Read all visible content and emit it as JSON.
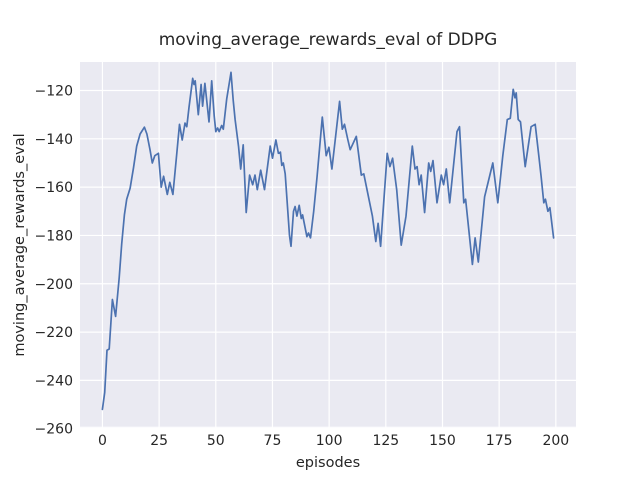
{
  "figure": {
    "background": "#ffffff"
  },
  "chart_data": {
    "type": "line",
    "title": "moving_average_rewards_eval of DDPG",
    "xlabel": "episodes",
    "ylabel": "moving_average_rewards_eval",
    "grid": true,
    "legend": "none",
    "plot_background": "#EAEAF2",
    "grid_color": "#FFFFFF",
    "text_color": "#262626",
    "xlim": [
      -9.9,
      208.9
    ],
    "ylim": [
      -259.7,
      -108.2
    ],
    "xticks": [
      0,
      25,
      50,
      75,
      100,
      125,
      150,
      175,
      200
    ],
    "yticks": [
      -120,
      -140,
      -160,
      -180,
      -200,
      -220,
      -240,
      -260
    ],
    "series": [
      {
        "name": "moving_average_rewards_eval",
        "color": "#4C72B0",
        "x": [
          0,
          1,
          2,
          3,
          4.4,
          5.8,
          7.4,
          8.5,
          9.7,
          10.7,
          12.2,
          13.7,
          15.1,
          16.6,
          18.5,
          19.6,
          21,
          22,
          23.1,
          24.7,
          25.9,
          27,
          28.6,
          29.7,
          31.1,
          32.8,
          34,
          35.2,
          36.4,
          37.2,
          38.2,
          39.8,
          40.4,
          40.9,
          42.3,
          43.5,
          44.2,
          45.2,
          47,
          48.2,
          49.3,
          50,
          50.8,
          51.5,
          52.6,
          53.3,
          54.8,
          56.7,
          57.7,
          58.5,
          60,
          61,
          62.1,
          63.4,
          64.9,
          66.3,
          67.3,
          68.3,
          69.8,
          71.5,
          74,
          75,
          76.5,
          77.6,
          78.5,
          79.1,
          79.8,
          80.6,
          82.5,
          83.2,
          84.3,
          85,
          85.8,
          86.8,
          87.7,
          88.3,
          90.2,
          90.9,
          91.8,
          93.2,
          94.7,
          97,
          98.7,
          99.9,
          101.2,
          104.6,
          105.8,
          106.8,
          108.3,
          109.3,
          112,
          114.2,
          115.3,
          119.1,
          120.6,
          121.6,
          122.7,
          125.6,
          126.8,
          128,
          129.8,
          131.8,
          133.9,
          136.7,
          137.9,
          138.8,
          139.7,
          140.6,
          142.1,
          143.9,
          144.8,
          145.8,
          147.6,
          149.5,
          150.5,
          151.7,
          153.2,
          156.4,
          157.5,
          159.4,
          160.2,
          163.2,
          164.4,
          165.8,
          168.6,
          172.2,
          174.4,
          176.6,
          178.6,
          179.9,
          181.2,
          182,
          182.5,
          183.4,
          184.4,
          186.5,
          189.1,
          190.9,
          192.5,
          193.5,
          194.7,
          195.4,
          196.5,
          197.4,
          199
        ],
        "y": [
          -252,
          -245,
          -227.5,
          -227,
          -206.5,
          -213.5,
          -197.5,
          -183.5,
          -171.5,
          -165,
          -160.5,
          -152,
          -143,
          -138,
          -135.2,
          -138,
          -144.5,
          -150,
          -147,
          -146,
          -160,
          -155.5,
          -163,
          -158,
          -163,
          -146,
          -134,
          -140.5,
          -133.5,
          -135,
          -127,
          -115,
          -117.5,
          -116,
          -130,
          -117.5,
          -126.5,
          -117,
          -133,
          -116,
          -130.5,
          -137,
          -135.5,
          -137,
          -134.5,
          -136,
          -123.5,
          -112.5,
          -124,
          -132,
          -143,
          -152.5,
          -142.5,
          -170.5,
          -155,
          -159,
          -155,
          -161,
          -153,
          -161,
          -143,
          -148,
          -140.5,
          -146,
          -145.5,
          -151,
          -150,
          -154.5,
          -180,
          -184.5,
          -170,
          -168,
          -172,
          -167.5,
          -173,
          -171.5,
          -180.5,
          -179,
          -181,
          -170,
          -155.5,
          -131,
          -147,
          -143.5,
          -152.5,
          -124.5,
          -136,
          -134,
          -140.5,
          -144.5,
          -139,
          -155,
          -154.5,
          -172,
          -182.5,
          -175,
          -184.5,
          -146,
          -151.5,
          -148,
          -161,
          -184,
          -172,
          -143,
          -152.5,
          -151.5,
          -159,
          -155,
          -170.5,
          -150,
          -153.5,
          -149,
          -166.5,
          -155,
          -159,
          -152.5,
          -166.5,
          -137,
          -135,
          -166.5,
          -165,
          -192,
          -181,
          -191,
          -164,
          -150,
          -166.5,
          -147,
          -132,
          -131.5,
          -119.5,
          -123,
          -121,
          -132,
          -133,
          -151.5,
          -135,
          -134,
          -147,
          -155.5,
          -166.5,
          -165,
          -170,
          -168.5,
          -181
        ]
      }
    ]
  }
}
